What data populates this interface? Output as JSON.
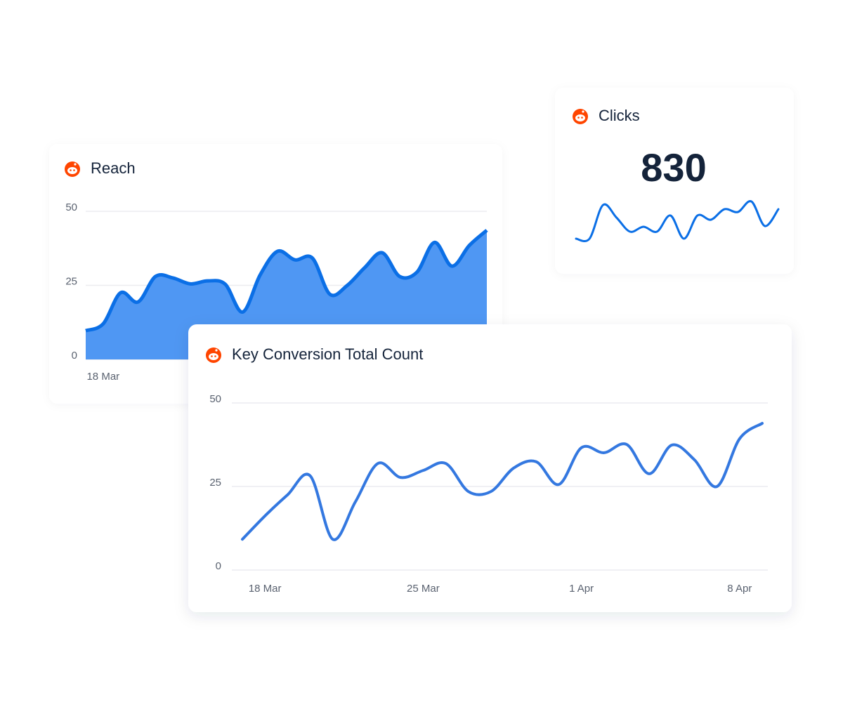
{
  "chart_data": [
    {
      "type": "area",
      "title": "Reach",
      "color": "#4f97f3",
      "line_color": "#0b6fe6",
      "categories": [
        null,
        "18 Mar",
        null,
        null,
        null,
        null,
        null,
        null,
        null,
        null,
        null,
        null,
        null,
        null,
        null,
        null,
        null,
        null,
        null,
        null,
        null,
        null,
        null,
        null
      ],
      "values": [
        9.7,
        12.0,
        22.5,
        19.4,
        28.0,
        27.5,
        25.5,
        26.5,
        25.4,
        16.0,
        28.5,
        36.5,
        33.6,
        34.2,
        22.0,
        25.0,
        31.0,
        36.0,
        28.0,
        29.5,
        39.5,
        31.5,
        38.5,
        43.6
      ],
      "ylim": [
        0,
        50
      ],
      "yticks": [
        0,
        25,
        50
      ],
      "grid": true
    },
    {
      "type": "sparkline",
      "title": "Clicks",
      "value": 830,
      "color": "#0b6fe6",
      "values": [
        10,
        10,
        58,
        40,
        20,
        27,
        20,
        43,
        10,
        43,
        37,
        52,
        48,
        63,
        28,
        52
      ]
    },
    {
      "type": "line",
      "title": "Key Conversion Total Count",
      "color": "#3478e0",
      "categories": [
        null,
        "18 Mar",
        null,
        null,
        null,
        null,
        null,
        null,
        "25 Mar",
        null,
        null,
        null,
        null,
        null,
        null,
        "1 Apr",
        null,
        null,
        null,
        null,
        null,
        null,
        "8 Apr",
        null
      ],
      "values": [
        9.2,
        16.2,
        22.5,
        28.2,
        9.2,
        20.4,
        31.9,
        27.7,
        29.8,
        31.9,
        23.5,
        23.5,
        30.5,
        32.4,
        25.6,
        36.6,
        35.1,
        37.6,
        28.8,
        37.4,
        33.0,
        25.0,
        39.3,
        43.9
      ],
      "ylim": [
        0,
        50
      ],
      "yticks": [
        0,
        25,
        50
      ],
      "grid": true
    }
  ]
}
